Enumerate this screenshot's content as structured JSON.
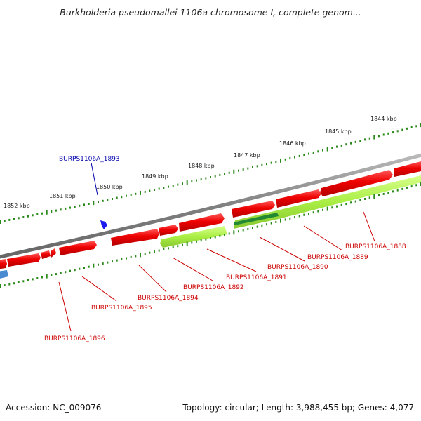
{
  "title": "Burkholderia pseudomallei 1106a chromosome I, complete genom...",
  "footer": {
    "accession": "Accession: NC_009076",
    "topology": "Topology: circular; Length: 3,988,455 bp; Genes: 4,077"
  },
  "kbp_ticks": [
    "1844 kbp",
    "1845 kbp",
    "1846 kbp",
    "1847 kbp",
    "1848 kbp",
    "1849 kbp",
    "1850 kbp",
    "1851 kbp",
    "1852 kbp"
  ],
  "gene_labels": {
    "top": "BURPS1106A_1893",
    "bottom": [
      "BURPS1106A_1888",
      "BURPS1106A_1889",
      "BURPS1106A_1890",
      "BURPS1106A_1891",
      "BURPS1106A_1892",
      "BURPS1106A_1894",
      "BURPS1106A_1895",
      "BURPS1106A_1896"
    ]
  },
  "colors": {
    "forward_gene": "#ee0000",
    "reverse_gene": "#aaee44",
    "dark_gene": "#228833",
    "blue_gene": "#3366cc",
    "label_top": "#0000aa",
    "label_bottom": "#cc0000",
    "tick": "#2a8a1a",
    "backbone": "#888888"
  }
}
